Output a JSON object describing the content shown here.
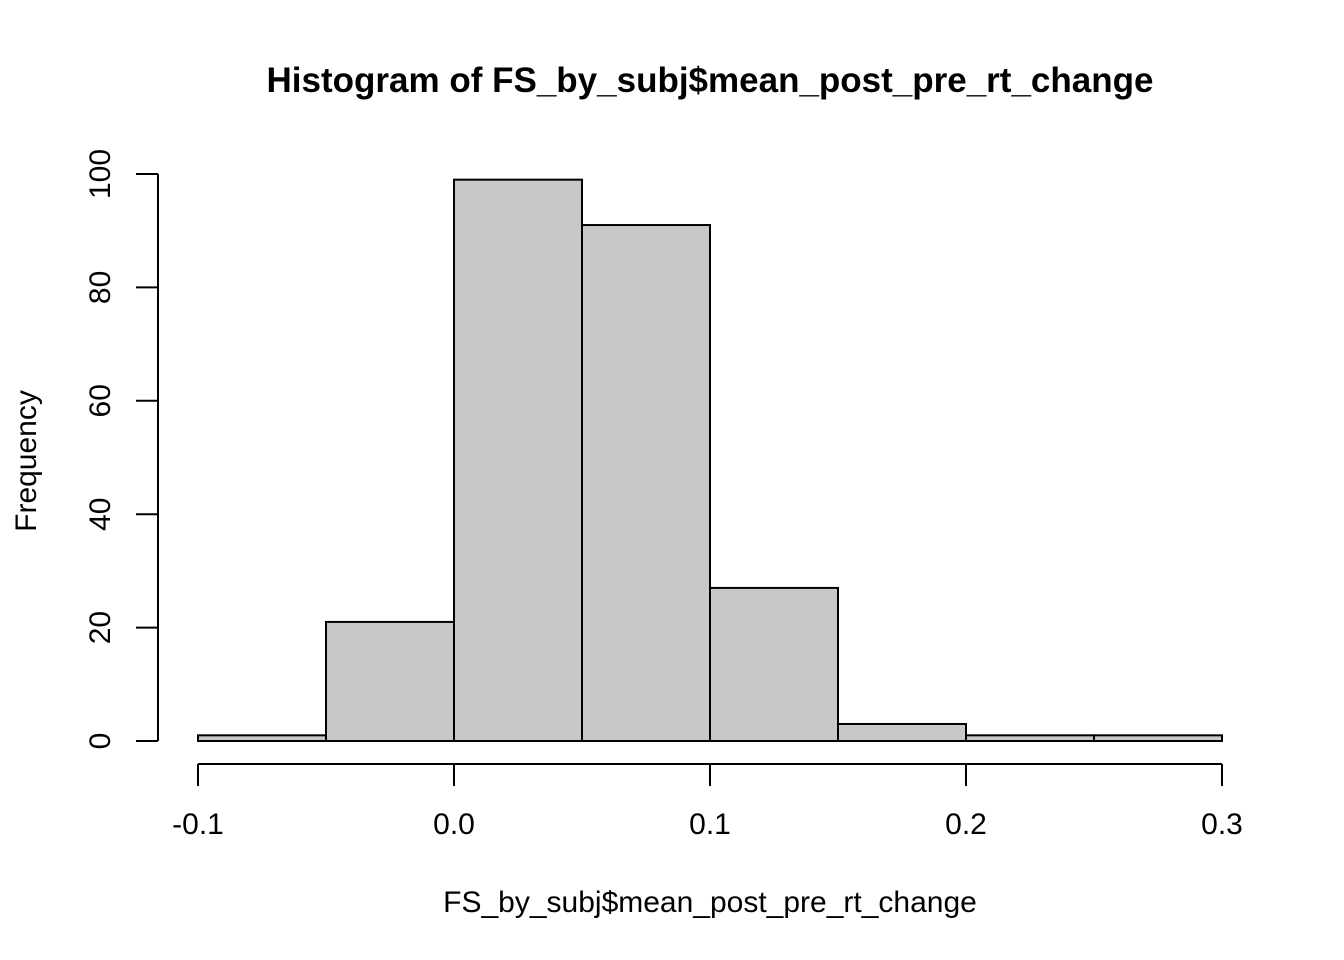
{
  "chart_data": {
    "type": "bar",
    "title": "Histogram of FS_by_subj$mean_post_pre_rt_change",
    "xlabel": "FS_by_subj$mean_post_pre_rt_change",
    "ylabel": "Frequency",
    "bins": [
      {
        "from": -0.1,
        "to": -0.05,
        "count": 1
      },
      {
        "from": -0.05,
        "to": 0.0,
        "count": 21
      },
      {
        "from": 0.0,
        "to": 0.05,
        "count": 99
      },
      {
        "from": 0.05,
        "to": 0.1,
        "count": 91
      },
      {
        "from": 0.1,
        "to": 0.15,
        "count": 27
      },
      {
        "from": 0.15,
        "to": 0.2,
        "count": 3
      },
      {
        "from": 0.2,
        "to": 0.25,
        "count": 1
      },
      {
        "from": 0.25,
        "to": 0.3,
        "count": 1
      }
    ],
    "xlim": [
      -0.1,
      0.3
    ],
    "ylim": [
      0,
      100
    ],
    "x_ticks": [
      -0.1,
      0.0,
      0.1,
      0.2,
      0.3
    ],
    "x_tick_labels": [
      "-0.1",
      "0.0",
      "0.1",
      "0.2",
      "0.3"
    ],
    "y_ticks": [
      0,
      20,
      40,
      60,
      80,
      100
    ],
    "y_tick_labels": [
      "0",
      "20",
      "40",
      "60",
      "80",
      "100"
    ],
    "bar_color": "#c8c8c8",
    "edge_color": "#000000",
    "grid": false
  }
}
